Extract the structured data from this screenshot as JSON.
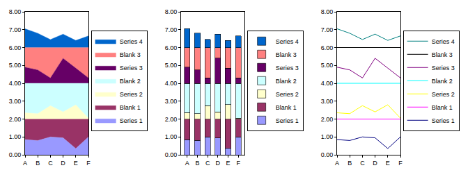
{
  "chart_data": [
    {
      "type": "area",
      "stacked": true,
      "legend": "right",
      "categories": [
        "A",
        "B",
        "C",
        "D",
        "E",
        "F"
      ],
      "ylim": [
        0,
        8
      ],
      "yticks": [
        {
          "value": 0,
          "label": "0.00"
        },
        {
          "value": 1,
          "label": "1.00"
        },
        {
          "value": 2,
          "label": "2.00"
        },
        {
          "value": 3,
          "label": "3.00"
        },
        {
          "value": 4,
          "label": "4.00"
        },
        {
          "value": 5,
          "label": "5.00"
        },
        {
          "value": 6,
          "label": "6.00"
        },
        {
          "value": 7,
          "label": "7.00"
        },
        {
          "value": 8,
          "label": "8.00"
        }
      ],
      "series": [
        {
          "name": "Series 1",
          "color": "#9999FF",
          "values": [
            0.85,
            0.8,
            1.0,
            0.95,
            0.35,
            1.0
          ]
        },
        {
          "name": "Blank 1",
          "color": "#993366",
          "values": [
            1.15,
            1.2,
            1.0,
            1.05,
            1.65,
            1.0
          ]
        },
        {
          "name": "Series 2",
          "color": "#FFFFCC",
          "values": [
            0.35,
            0.3,
            0.75,
            0.4,
            0.8,
            0.05
          ]
        },
        {
          "name": "Blank 2",
          "color": "#CCFFFF",
          "values": [
            1.65,
            1.7,
            1.25,
            1.6,
            1.2,
            1.95
          ]
        },
        {
          "name": "Series 3",
          "color": "#660066",
          "values": [
            0.9,
            0.75,
            0.3,
            1.4,
            0.85,
            0.3
          ]
        },
        {
          "name": "Blank 3",
          "color": "#FF8080",
          "values": [
            1.1,
            1.25,
            1.7,
            0.6,
            1.15,
            1.7
          ]
        },
        {
          "name": "Series 4",
          "color": "#0066CC",
          "values": [
            1.05,
            0.8,
            0.45,
            0.75,
            0.4,
            0.65
          ]
        }
      ]
    },
    {
      "type": "bar",
      "stacked": true,
      "legend": "right",
      "categories": [
        "A",
        "B",
        "C",
        "D",
        "E",
        "F"
      ],
      "ylim": [
        0,
        8
      ],
      "yticks": [
        {
          "value": 0,
          "label": "0.00"
        },
        {
          "value": 1,
          "label": "1.00"
        },
        {
          "value": 2,
          "label": "2.00"
        },
        {
          "value": 3,
          "label": "3.00"
        },
        {
          "value": 4,
          "label": "4.00"
        },
        {
          "value": 5,
          "label": "5.00"
        },
        {
          "value": 6,
          "label": "6.00"
        },
        {
          "value": 7,
          "label": "7.00"
        },
        {
          "value": 8,
          "label": "8.00"
        }
      ],
      "series": [
        {
          "name": "Series 1",
          "color": "#9999FF",
          "values": [
            0.85,
            0.8,
            1.0,
            0.95,
            0.35,
            1.0
          ]
        },
        {
          "name": "Blank 1",
          "color": "#993366",
          "values": [
            1.15,
            1.2,
            1.0,
            1.05,
            1.65,
            1.0
          ]
        },
        {
          "name": "Series 2",
          "color": "#FFFFCC",
          "values": [
            0.35,
            0.3,
            0.75,
            0.4,
            0.8,
            0.05
          ]
        },
        {
          "name": "Blank 2",
          "color": "#CCFFFF",
          "values": [
            1.65,
            1.7,
            1.25,
            1.6,
            1.2,
            1.95
          ]
        },
        {
          "name": "Series 3",
          "color": "#660066",
          "values": [
            0.9,
            0.75,
            0.3,
            1.4,
            0.85,
            0.3
          ]
        },
        {
          "name": "Blank 3",
          "color": "#FF8080",
          "values": [
            1.1,
            1.25,
            1.7,
            0.6,
            1.15,
            1.7
          ]
        },
        {
          "name": "Series 4",
          "color": "#0066CC",
          "values": [
            1.05,
            0.8,
            0.45,
            0.75,
            0.4,
            0.65
          ]
        }
      ]
    },
    {
      "type": "line",
      "stacked": true,
      "legend": "right",
      "categories": [
        "A",
        "B",
        "C",
        "D",
        "E",
        "F"
      ],
      "ylim": [
        0,
        8
      ],
      "yticks": [
        {
          "value": 0,
          "label": "0.00"
        },
        {
          "value": 1,
          "label": "1.00"
        },
        {
          "value": 2,
          "label": "2.00"
        },
        {
          "value": 3,
          "label": "3.00"
        },
        {
          "value": 4,
          "label": "4.00"
        },
        {
          "value": 5,
          "label": "5.00"
        },
        {
          "value": 6,
          "label": "6.00"
        },
        {
          "value": 7,
          "label": "7.00"
        },
        {
          "value": 8,
          "label": "8.00"
        }
      ],
      "series": [
        {
          "name": "Series 1",
          "color": "#000080",
          "values": [
            0.85,
            0.8,
            1.0,
            0.95,
            0.35,
            1.0
          ]
        },
        {
          "name": "Blank 1",
          "color": "#FF00FF",
          "values": [
            1.15,
            1.2,
            1.0,
            1.05,
            1.65,
            1.0
          ]
        },
        {
          "name": "Series 2",
          "color": "#FFFF00",
          "values": [
            0.35,
            0.3,
            0.75,
            0.4,
            0.8,
            0.05
          ]
        },
        {
          "name": "Blank 2",
          "color": "#00FFFF",
          "values": [
            1.65,
            1.7,
            1.25,
            1.6,
            1.2,
            1.95
          ]
        },
        {
          "name": "Series 3",
          "color": "#800080",
          "values": [
            0.9,
            0.75,
            0.3,
            1.4,
            0.85,
            0.3
          ]
        },
        {
          "name": "Blank 3",
          "color": "#000000",
          "values": [
            1.1,
            1.25,
            1.7,
            0.6,
            1.15,
            1.7
          ]
        },
        {
          "name": "Series 4",
          "color": "#008080",
          "values": [
            1.05,
            0.8,
            0.45,
            0.75,
            0.4,
            0.65
          ]
        }
      ]
    }
  ]
}
